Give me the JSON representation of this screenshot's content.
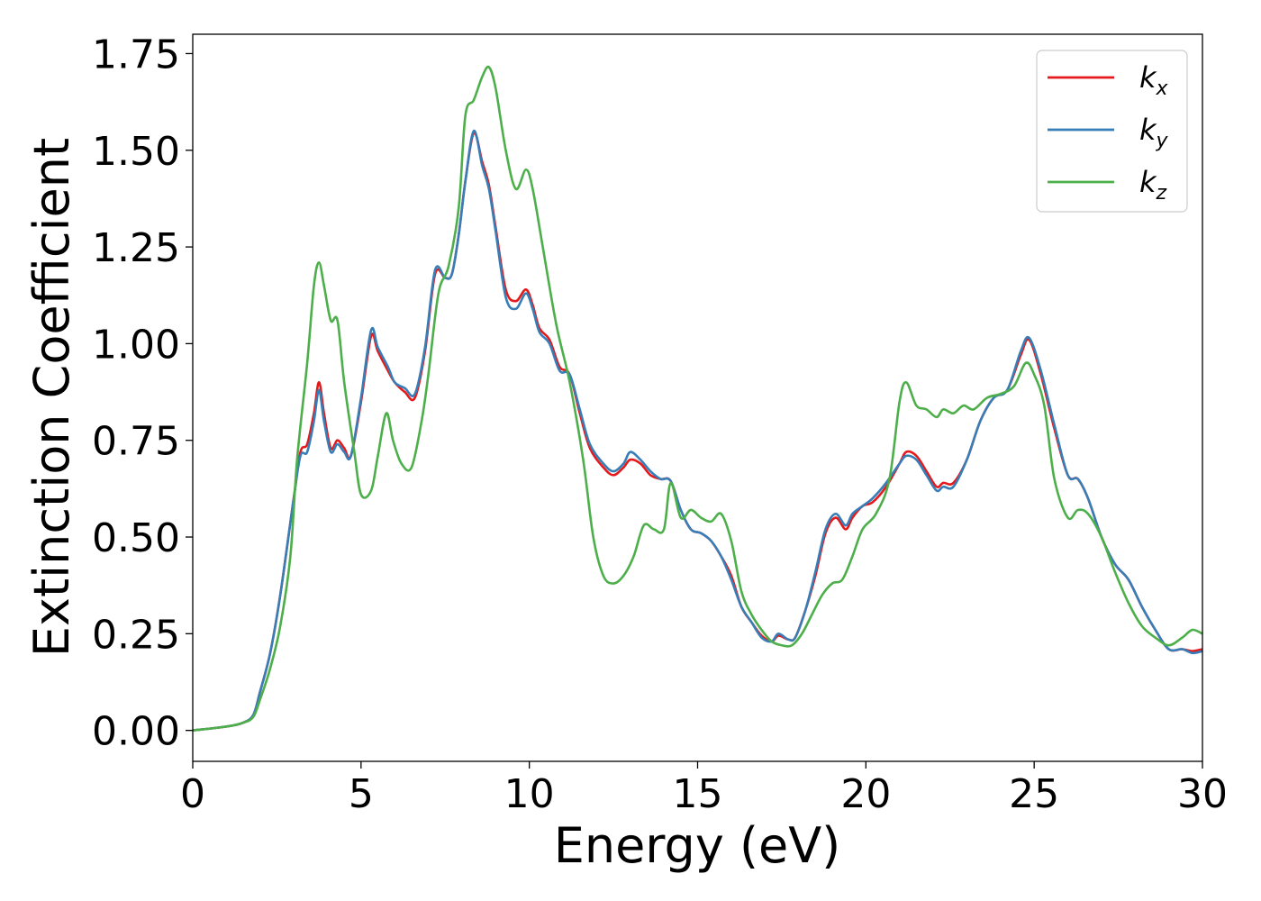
{
  "chart_data": {
    "type": "line",
    "xlabel": "Energy (eV)",
    "ylabel": "Extinction Coefficient",
    "xlim": [
      0,
      30
    ],
    "ylim": [
      -0.08,
      1.8
    ],
    "xticks": [
      0,
      5,
      10,
      15,
      20,
      25,
      30
    ],
    "xtick_labels": [
      "0",
      "5",
      "10",
      "15",
      "20",
      "25",
      "30"
    ],
    "yticks": [
      0.0,
      0.25,
      0.5,
      0.75,
      1.0,
      1.25,
      1.5,
      1.75
    ],
    "ytick_labels": [
      "0.00",
      "0.25",
      "0.50",
      "0.75",
      "1.00",
      "1.25",
      "1.50",
      "1.75"
    ],
    "grid": false,
    "legend_position": "top-right",
    "series": [
      {
        "name": "k",
        "subscript": "x",
        "color": "#e41a1c",
        "x": [
          0,
          1,
          1.5,
          1.8,
          2.0,
          2.3,
          2.6,
          3.0,
          3.2,
          3.4,
          3.6,
          3.75,
          3.9,
          4.1,
          4.3,
          4.5,
          4.7,
          5.0,
          5.3,
          5.5,
          5.8,
          6.0,
          6.3,
          6.6,
          6.9,
          7.2,
          7.5,
          7.7,
          7.9,
          8.1,
          8.35,
          8.6,
          8.8,
          9.0,
          9.3,
          9.6,
          9.9,
          10.1,
          10.3,
          10.6,
          10.9,
          11.2,
          11.5,
          11.8,
          12.2,
          12.5,
          12.8,
          13.0,
          13.3,
          13.6,
          13.9,
          14.2,
          14.5,
          14.8,
          15.1,
          15.4,
          15.7,
          16.0,
          16.3,
          16.6,
          16.9,
          17.2,
          17.4,
          17.7,
          17.9,
          18.2,
          18.5,
          18.8,
          19.1,
          19.4,
          19.6,
          19.9,
          20.2,
          20.6,
          21.0,
          21.2,
          21.5,
          21.8,
          22.1,
          22.3,
          22.6,
          23.0,
          23.4,
          23.8,
          24.2,
          24.6,
          24.85,
          25.2,
          25.6,
          26.0,
          26.3,
          26.6,
          27.0,
          27.4,
          27.8,
          28.2,
          28.6,
          29.0,
          29.4,
          29.7,
          30.0
        ],
        "y": [
          0,
          0.01,
          0.02,
          0.04,
          0.1,
          0.2,
          0.35,
          0.6,
          0.72,
          0.74,
          0.82,
          0.9,
          0.82,
          0.73,
          0.75,
          0.73,
          0.71,
          0.85,
          1.02,
          0.98,
          0.93,
          0.9,
          0.875,
          0.86,
          0.98,
          1.18,
          1.17,
          1.18,
          1.28,
          1.42,
          1.545,
          1.47,
          1.41,
          1.3,
          1.14,
          1.11,
          1.14,
          1.1,
          1.04,
          1.01,
          0.94,
          0.92,
          0.82,
          0.73,
          0.68,
          0.66,
          0.68,
          0.7,
          0.69,
          0.66,
          0.65,
          0.645,
          0.57,
          0.52,
          0.51,
          0.49,
          0.45,
          0.4,
          0.32,
          0.28,
          0.245,
          0.23,
          0.245,
          0.235,
          0.24,
          0.31,
          0.4,
          0.51,
          0.55,
          0.52,
          0.55,
          0.58,
          0.59,
          0.63,
          0.69,
          0.72,
          0.71,
          0.67,
          0.63,
          0.64,
          0.64,
          0.7,
          0.8,
          0.86,
          0.88,
          0.97,
          1.01,
          0.92,
          0.78,
          0.66,
          0.65,
          0.6,
          0.5,
          0.43,
          0.39,
          0.32,
          0.26,
          0.21,
          0.21,
          0.205,
          0.21
        ]
      },
      {
        "name": "k",
        "subscript": "y",
        "color": "#377eb8",
        "x": [
          0,
          1,
          1.5,
          1.8,
          2.0,
          2.3,
          2.6,
          3.0,
          3.2,
          3.4,
          3.6,
          3.75,
          3.9,
          4.1,
          4.3,
          4.5,
          4.7,
          5.0,
          5.3,
          5.5,
          5.8,
          6.0,
          6.3,
          6.6,
          6.9,
          7.2,
          7.5,
          7.7,
          7.9,
          8.1,
          8.35,
          8.6,
          8.8,
          9.0,
          9.3,
          9.6,
          9.9,
          10.1,
          10.3,
          10.6,
          10.9,
          11.2,
          11.5,
          11.8,
          12.2,
          12.5,
          12.8,
          13.0,
          13.3,
          13.6,
          13.9,
          14.2,
          14.5,
          14.8,
          15.1,
          15.4,
          15.7,
          16.0,
          16.3,
          16.6,
          16.9,
          17.2,
          17.4,
          17.7,
          17.9,
          18.2,
          18.5,
          18.8,
          19.1,
          19.4,
          19.6,
          19.9,
          20.2,
          20.6,
          21.0,
          21.2,
          21.5,
          21.8,
          22.1,
          22.3,
          22.6,
          23.0,
          23.4,
          23.8,
          24.2,
          24.6,
          24.85,
          25.2,
          25.6,
          26.0,
          26.3,
          26.6,
          27.0,
          27.4,
          27.8,
          28.2,
          28.6,
          29.0,
          29.4,
          29.7,
          30.0
        ],
        "y": [
          0,
          0.01,
          0.02,
          0.04,
          0.1,
          0.2,
          0.35,
          0.6,
          0.71,
          0.72,
          0.8,
          0.88,
          0.8,
          0.72,
          0.74,
          0.72,
          0.71,
          0.86,
          1.035,
          0.99,
          0.94,
          0.9,
          0.885,
          0.87,
          0.99,
          1.19,
          1.17,
          1.18,
          1.28,
          1.42,
          1.55,
          1.46,
          1.4,
          1.29,
          1.12,
          1.09,
          1.13,
          1.09,
          1.03,
          1.0,
          0.93,
          0.92,
          0.83,
          0.74,
          0.69,
          0.67,
          0.69,
          0.72,
          0.7,
          0.67,
          0.65,
          0.645,
          0.57,
          0.52,
          0.51,
          0.49,
          0.45,
          0.39,
          0.32,
          0.28,
          0.24,
          0.23,
          0.25,
          0.235,
          0.24,
          0.31,
          0.41,
          0.52,
          0.56,
          0.53,
          0.56,
          0.58,
          0.6,
          0.64,
          0.69,
          0.71,
          0.7,
          0.66,
          0.62,
          0.63,
          0.63,
          0.7,
          0.8,
          0.86,
          0.88,
          0.98,
          1.015,
          0.93,
          0.79,
          0.66,
          0.65,
          0.6,
          0.5,
          0.43,
          0.39,
          0.32,
          0.26,
          0.21,
          0.21,
          0.2,
          0.205
        ]
      },
      {
        "name": "k",
        "subscript": "z",
        "color": "#4daf4a",
        "x": [
          0,
          1,
          1.5,
          1.8,
          2.0,
          2.3,
          2.6,
          2.9,
          3.1,
          3.4,
          3.6,
          3.75,
          3.9,
          4.1,
          4.3,
          4.5,
          4.8,
          5.0,
          5.3,
          5.5,
          5.75,
          5.95,
          6.2,
          6.5,
          6.8,
          7.0,
          7.3,
          7.6,
          7.9,
          8.1,
          8.35,
          8.6,
          8.8,
          9.0,
          9.3,
          9.6,
          9.9,
          10.1,
          10.4,
          10.8,
          11.2,
          11.6,
          11.9,
          12.2,
          12.5,
          12.8,
          13.1,
          13.4,
          13.7,
          14.0,
          14.2,
          14.5,
          14.8,
          15.1,
          15.4,
          15.7,
          16.0,
          16.3,
          16.6,
          16.9,
          17.2,
          17.5,
          17.8,
          18.1,
          18.4,
          18.7,
          19.0,
          19.3,
          19.6,
          19.9,
          20.3,
          20.7,
          21.0,
          21.2,
          21.5,
          21.8,
          22.1,
          22.3,
          22.6,
          22.9,
          23.2,
          23.6,
          24.0,
          24.4,
          24.75,
          25.0,
          25.3,
          25.6,
          26.0,
          26.3,
          26.6,
          27.0,
          27.4,
          27.8,
          28.2,
          28.6,
          29.0,
          29.4,
          29.7,
          30.0
        ],
        "y": [
          0,
          0.01,
          0.02,
          0.035,
          0.08,
          0.16,
          0.27,
          0.45,
          0.7,
          0.95,
          1.15,
          1.21,
          1.15,
          1.06,
          1.06,
          0.9,
          0.72,
          0.61,
          0.62,
          0.71,
          0.82,
          0.75,
          0.69,
          0.68,
          0.8,
          0.92,
          1.13,
          1.2,
          1.35,
          1.59,
          1.63,
          1.69,
          1.715,
          1.66,
          1.5,
          1.4,
          1.45,
          1.4,
          1.25,
          1.05,
          0.9,
          0.7,
          0.5,
          0.4,
          0.38,
          0.4,
          0.45,
          0.53,
          0.52,
          0.52,
          0.64,
          0.55,
          0.57,
          0.55,
          0.54,
          0.56,
          0.49,
          0.36,
          0.3,
          0.26,
          0.23,
          0.22,
          0.22,
          0.25,
          0.3,
          0.35,
          0.38,
          0.39,
          0.45,
          0.52,
          0.56,
          0.65,
          0.85,
          0.9,
          0.84,
          0.83,
          0.81,
          0.83,
          0.82,
          0.84,
          0.83,
          0.86,
          0.87,
          0.89,
          0.95,
          0.92,
          0.84,
          0.65,
          0.55,
          0.57,
          0.56,
          0.5,
          0.41,
          0.33,
          0.27,
          0.24,
          0.22,
          0.24,
          0.26,
          0.25
        ]
      }
    ]
  },
  "colors": {
    "axis": "#000000",
    "legend_border": "#cccccc",
    "background": "#ffffff"
  }
}
